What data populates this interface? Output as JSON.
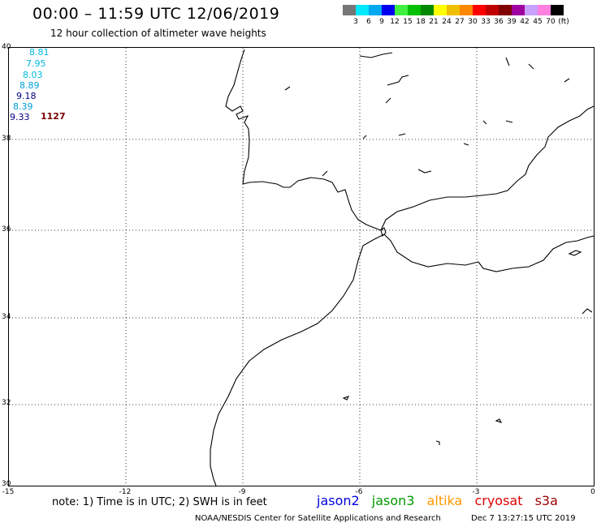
{
  "header": {
    "title": "00:00 – 11:59 UTC 12/06/2019",
    "subtitle": "12 hour collection of altimeter wave heights"
  },
  "colorbar": {
    "colors": [
      "#777777",
      "#00e8ff",
      "#00a8f0",
      "#0000ee",
      "#40f040",
      "#00c000",
      "#008800",
      "#ffff00",
      "#f0c000",
      "#ff8800",
      "#ff0000",
      "#c00000",
      "#800000",
      "#a000a0",
      "#c8a0ff",
      "#ff80e0",
      "#000000"
    ],
    "labels": [
      "3",
      "6",
      "9",
      "12",
      "15",
      "18",
      "21",
      "24",
      "27",
      "30",
      "33",
      "36",
      "39",
      "42",
      "45",
      "70",
      "(ft)"
    ]
  },
  "axes": {
    "lat_labels": [
      "40",
      "38",
      "36",
      "34",
      "32",
      "30"
    ],
    "lon_labels": [
      "-15",
      "-12",
      "-9",
      "-6",
      "-3",
      "0"
    ]
  },
  "swh_readings": [
    {
      "value": "8.81",
      "color": "#00b8e0"
    },
    {
      "value": "7.95",
      "color": "#00b8e0"
    },
    {
      "value": "8.03",
      "color": "#00b8e0"
    },
    {
      "value": "8.89",
      "color": "#00a0d8"
    },
    {
      "value": "9.18",
      "color": "#000080"
    },
    {
      "value": "8.39",
      "color": "#00a0d8"
    },
    {
      "value": "9.33",
      "color": "#000080"
    }
  ],
  "count": "1127",
  "footer": {
    "note": "note: 1) Time is in UTC; 2) SWH is in feet",
    "satellites": [
      {
        "name": "jason2",
        "color": "#0000dd"
      },
      {
        "name": "jason3",
        "color": "#009900"
      },
      {
        "name": "altika",
        "color": "#ff9900"
      },
      {
        "name": "cryosat",
        "color": "#dd0000"
      },
      {
        "name": "s3a",
        "color": "#990000"
      }
    ],
    "credit": "NOAA/NESDIS Center for Satellite Applications and Research",
    "timestamp": "Dec  7 13:27:15 UTC 2019"
  }
}
